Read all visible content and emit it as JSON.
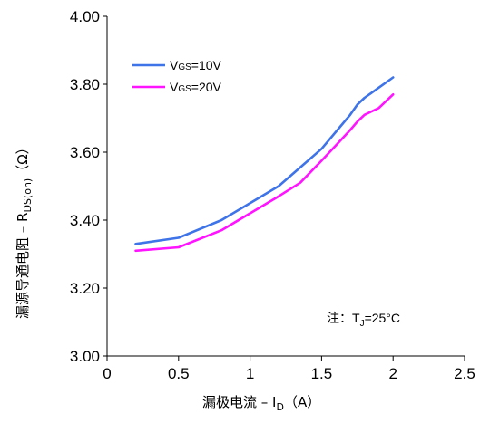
{
  "chart_data": {
    "type": "line",
    "x": [
      0.2,
      0.5,
      0.8,
      1.0,
      1.2,
      1.35,
      1.5,
      1.6,
      1.7,
      1.75,
      1.8,
      1.85,
      1.9,
      2.0
    ],
    "series": [
      {
        "name_prefix": "V",
        "name_subscript": "GS",
        "name_suffix": "=10V",
        "color": "#3F74E8",
        "values": [
          3.33,
          3.348,
          3.4,
          3.45,
          3.5,
          3.555,
          3.61,
          3.66,
          3.71,
          3.74,
          3.76,
          3.775,
          3.79,
          3.82
        ]
      },
      {
        "name_prefix": "V",
        "name_subscript": "GS",
        "name_suffix": "=20V",
        "color": "#FF14FF",
        "values": [
          3.31,
          3.32,
          3.37,
          3.42,
          3.47,
          3.51,
          3.575,
          3.62,
          3.665,
          3.69,
          3.71,
          3.72,
          3.73,
          3.77
        ]
      }
    ],
    "xlim": [
      0,
      2.5
    ],
    "ylim": [
      3.0,
      4.0
    ],
    "x_ticks": [
      0,
      0.5,
      1,
      1.5,
      2,
      2.5
    ],
    "x_tick_labels": [
      "0",
      "0.5",
      "1",
      "1.5",
      "2",
      "2.5"
    ],
    "y_ticks": [
      3.0,
      3.2,
      3.4,
      3.6,
      3.8,
      4.0
    ],
    "y_tick_labels": [
      "3.00",
      "3.20",
      "3.40",
      "3.60",
      "3.80",
      "4.00"
    ],
    "xlabel": {
      "text": "漏极电流 – I",
      "subscript": "D",
      "suffix": "（A）"
    },
    "ylabel": {
      "text": "漏源导通电阻 – R",
      "subscript": "DS(on)",
      "suffix": "（Ω）"
    },
    "annotation": {
      "prefix": "注：T",
      "subscript": "J",
      "suffix": "=25°C"
    },
    "grid": false,
    "legend_position": "top-left"
  }
}
